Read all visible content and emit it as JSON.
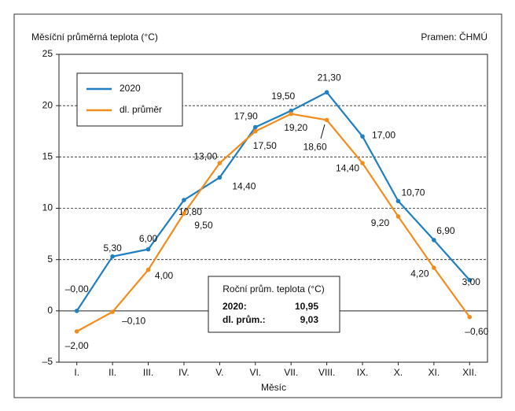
{
  "chart_data": {
    "type": "line",
    "ylabel": "Měsíční průměrná teplota (°C)",
    "source": "Pramen: ČHMÚ",
    "xlabel": "Měsíc",
    "categories": [
      "I.",
      "II.",
      "III.",
      "IV.",
      "V.",
      "VI.",
      "VII.",
      "VIII.",
      "IX.",
      "X.",
      "XI.",
      "XII."
    ],
    "series": [
      {
        "name": "2020",
        "color": "#1f7fc1",
        "values": [
          -0.0,
          5.3,
          6.0,
          10.8,
          13.0,
          17.9,
          19.5,
          21.3,
          17.0,
          10.7,
          6.9,
          3.0
        ],
        "value_labels": [
          "–0,00",
          "5,30",
          "6,00",
          "10,80",
          "13,00",
          "17,90",
          "19,50",
          "21,30",
          "17,00",
          "10,70",
          "6,90",
          "3,00"
        ]
      },
      {
        "name": "dl. průměr",
        "color": "#f28c1c",
        "values": [
          -2.0,
          -0.1,
          4.0,
          9.5,
          14.4,
          17.5,
          19.2,
          18.6,
          14.4,
          9.2,
          4.2,
          -0.6
        ],
        "value_labels": [
          "–2,00",
          "–0,10",
          "4,00",
          "9,50",
          "14,40",
          "17,50",
          "19,20",
          "18,60",
          "14,40",
          "9,20",
          "4,20",
          "–0,60"
        ]
      }
    ],
    "ylim": [
      -5,
      25
    ],
    "yticks": [
      {
        "value": -5,
        "label": "–5"
      },
      0,
      5,
      10,
      15,
      20,
      25
    ],
    "grid": true,
    "legend": "upper left",
    "annotation": {
      "title": "Roční prům. teplota (°C)",
      "rows": [
        [
          "2020:",
          "10,95"
        ],
        [
          "dl. prům.:",
          "9,03"
        ]
      ]
    }
  }
}
